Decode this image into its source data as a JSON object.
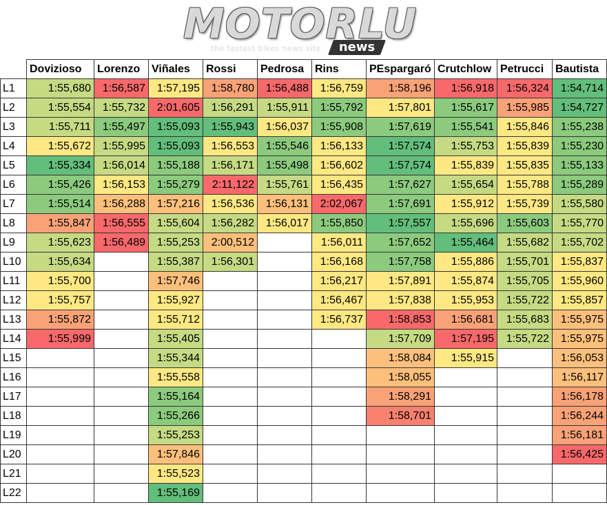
{
  "logo": {
    "word": "MOTORLU",
    "tagline": "the fastest bikes news site",
    "badge": "news"
  },
  "riders": [
    "Dovizioso",
    "Lorenzo",
    "Viñales",
    "Rossi",
    "Pedrosa",
    "Rins",
    "PEspargaró",
    "Crutchlow",
    "Petrucci",
    "Bautista"
  ],
  "laps": [
    "L1",
    "L2",
    "L3",
    "L4",
    "L5",
    "L6",
    "L7",
    "L8",
    "L9",
    "L10",
    "L11",
    "L12",
    "L13",
    "L14",
    "L15",
    "L16",
    "L17",
    "L18",
    "L19",
    "L20",
    "L21",
    "L22"
  ],
  "times": [
    [
      "1:55,680",
      "1:56,587",
      "1:57,195",
      "1:58,780",
      "1:56,488",
      "1:56,759",
      "1:58,196",
      "1:56,918",
      "1:56,324",
      "1:54,714"
    ],
    [
      "1:55,554",
      "1:55,732",
      "2:01,605",
      "1:56,291",
      "1:55,911",
      "1:55,792",
      "1:57,801",
      "1:55,617",
      "1:55,985",
      "1:54,727"
    ],
    [
      "1:55,711",
      "1:55,497",
      "1:55,093",
      "1:55,943",
      "1:56,037",
      "1:55,908",
      "1:57,619",
      "1:55,541",
      "1:55,846",
      "1:55,238"
    ],
    [
      "1:55,672",
      "1:55,995",
      "1:55,093",
      "1:56,553",
      "1:55,546",
      "1:56,133",
      "1:57,574",
      "1:55,753",
      "1:55,839",
      "1:55,230"
    ],
    [
      "1:55,334",
      "1:56,014",
      "1:55,188",
      "1:56,171",
      "1:55,498",
      "1:56,602",
      "1:57,574",
      "1:55,839",
      "1:55,835",
      "1:55,133"
    ],
    [
      "1:55,426",
      "1:56,153",
      "1:55,279",
      "2:11,122",
      "1:55,761",
      "1:56,435",
      "1:57,627",
      "1:55,654",
      "1:55,788",
      "1:55,289"
    ],
    [
      "1:55,514",
      "1:56,288",
      "1:57,216",
      "1:56,536",
      "1:56,131",
      "2:02,067",
      "1:57,691",
      "1:55,912",
      "1:55,739",
      "1:55,580"
    ],
    [
      "1:55,847",
      "1:56,555",
      "1:55,604",
      "1:56,282",
      "1:56,017",
      "1:55,850",
      "1:57,557",
      "1:55,696",
      "1:55,603",
      "1:55,770"
    ],
    [
      "1:55,623",
      "1:56,489",
      "1:55,253",
      "2:00,512",
      "",
      "1:56,011",
      "1:57,652",
      "1:55,464",
      "1:55,682",
      "1:55,702"
    ],
    [
      "1:55,634",
      "",
      "1:55,387",
      "1:56,301",
      "",
      "1:56,168",
      "1:57,758",
      "1:55,886",
      "1:55,701",
      "1:55,837"
    ],
    [
      "1:55,700",
      "",
      "1:57,746",
      "",
      "",
      "1:56,217",
      "1:57,891",
      "1:55,874",
      "1:55,705",
      "1:55,960"
    ],
    [
      "1:55,757",
      "",
      "1:55,927",
      "",
      "",
      "1:56,467",
      "1:57,838",
      "1:55,953",
      "1:55,722",
      "1:55,857"
    ],
    [
      "1:55,872",
      "",
      "1:55,712",
      "",
      "",
      "1:56,737",
      "1:58,853",
      "1:56,681",
      "1:55,683",
      "1:55,975"
    ],
    [
      "1:55,999",
      "",
      "1:55,405",
      "",
      "",
      "",
      "1:57,709",
      "1:57,195",
      "1:55,722",
      "1:55,975"
    ],
    [
      "",
      "",
      "1:55,344",
      "",
      "",
      "",
      "1:58,084",
      "1:55,915",
      "",
      "1:56,053"
    ],
    [
      "",
      "",
      "1:55,558",
      "",
      "",
      "",
      "1:58,055",
      "",
      "",
      "1:56,117"
    ],
    [
      "",
      "",
      "1:55,164",
      "",
      "",
      "",
      "1:58,291",
      "",
      "",
      "1:56,178"
    ],
    [
      "",
      "",
      "1:55,266",
      "",
      "",
      "",
      "1:58,701",
      "",
      "",
      "1:56,244"
    ],
    [
      "",
      "",
      "1:55,253",
      "",
      "",
      "",
      "",
      "",
      "",
      "1:56,181"
    ],
    [
      "",
      "",
      "1:57,846",
      "",
      "",
      "",
      "",
      "",
      "",
      "1:56,425"
    ],
    [
      "",
      "",
      "1:55,523",
      "",
      "",
      "",
      "",
      "",
      "",
      ""
    ],
    [
      "",
      "",
      "1:55,169",
      "",
      "",
      "",
      "",
      "",
      "",
      ""
    ]
  ],
  "colors": {
    "G": "#63be7b",
    "g": "#8cca7e",
    "l": "#c5da83",
    "Y": "#fde883",
    "o": "#fdc07c",
    "O": "#f9a277",
    "r": "#f8816f",
    "R": "#f8696b",
    "w": "#ffffff"
  },
  "fills": [
    [
      "l",
      "R",
      "Y",
      "O",
      "R",
      "Y",
      "O",
      "R",
      "R",
      "G"
    ],
    [
      "l",
      "l",
      "R",
      "l",
      "l",
      "g",
      "Y",
      "g",
      "O",
      "G"
    ],
    [
      "l",
      "g",
      "G",
      "G",
      "Y",
      "g",
      "g",
      "g",
      "Y",
      "g"
    ],
    [
      "Y",
      "l",
      "G",
      "Y",
      "g",
      "Y",
      "G",
      "l",
      "Y",
      "g"
    ],
    [
      "G",
      "l",
      "g",
      "l",
      "g",
      "Y",
      "G",
      "Y",
      "Y",
      "g"
    ],
    [
      "g",
      "Y",
      "g",
      "R",
      "l",
      "Y",
      "g",
      "l",
      "Y",
      "g"
    ],
    [
      "g",
      "o",
      "o",
      "Y",
      "o",
      "R",
      "g",
      "Y",
      "Y",
      "l"
    ],
    [
      "O",
      "R",
      "l",
      "l",
      "Y",
      "g",
      "G",
      "l",
      "g",
      "l"
    ],
    [
      "l",
      "R",
      "l",
      "o",
      "w",
      "Y",
      "g",
      "G",
      "l",
      "l"
    ],
    [
      "l",
      "w",
      "l",
      "l",
      "w",
      "Y",
      "g",
      "Y",
      "l",
      "Y"
    ],
    [
      "Y",
      "w",
      "o",
      "w",
      "w",
      "Y",
      "Y",
      "Y",
      "l",
      "Y"
    ],
    [
      "Y",
      "w",
      "Y",
      "w",
      "w",
      "Y",
      "Y",
      "Y",
      "l",
      "Y"
    ],
    [
      "O",
      "w",
      "Y",
      "w",
      "w",
      "Y",
      "R",
      "O",
      "l",
      "o"
    ],
    [
      "R",
      "w",
      "l",
      "w",
      "w",
      "w",
      "l",
      "R",
      "l",
      "o"
    ],
    [
      "w",
      "w",
      "l",
      "w",
      "w",
      "w",
      "o",
      "Y",
      "w",
      "o"
    ],
    [
      "w",
      "w",
      "Y",
      "w",
      "w",
      "w",
      "o",
      "w",
      "w",
      "o"
    ],
    [
      "w",
      "w",
      "g",
      "w",
      "w",
      "w",
      "O",
      "w",
      "w",
      "O"
    ],
    [
      "w",
      "w",
      "g",
      "w",
      "w",
      "w",
      "r",
      "w",
      "w",
      "O"
    ],
    [
      "w",
      "w",
      "l",
      "w",
      "w",
      "w",
      "w",
      "w",
      "w",
      "O"
    ],
    [
      "w",
      "w",
      "o",
      "w",
      "w",
      "w",
      "w",
      "w",
      "w",
      "R"
    ],
    [
      "w",
      "w",
      "Y",
      "w",
      "w",
      "w",
      "w",
      "w",
      "w",
      "w"
    ],
    [
      "w",
      "w",
      "G",
      "w",
      "w",
      "w",
      "w",
      "w",
      "w",
      "w"
    ]
  ]
}
